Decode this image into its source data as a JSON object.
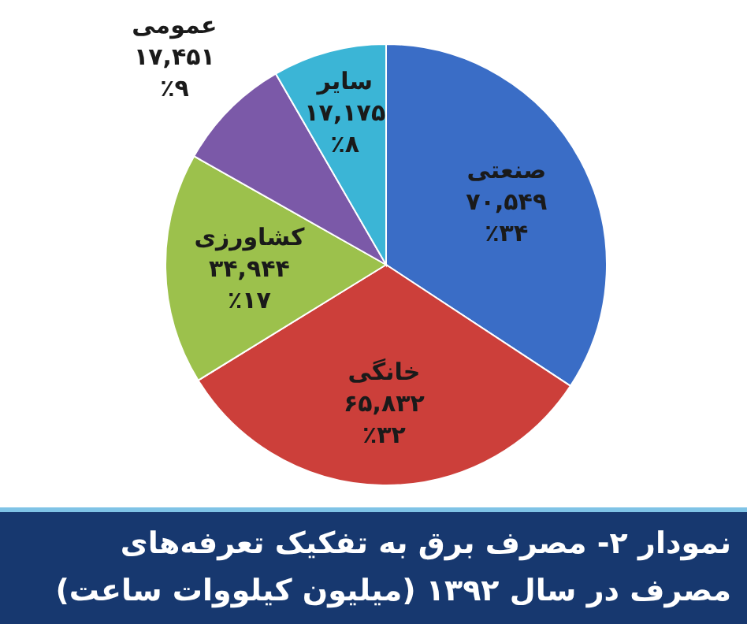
{
  "chart_data": {
    "type": "pie",
    "title": "نمودار ۲- مصرف برق به تفکیک تعرفه‌های مصرف در سال ۱۳۹۲ (میلیون کیلووات ساعت)",
    "categories": [
      "صنعتی",
      "خانگی",
      "کشاورزی",
      "عمومی",
      "سایر"
    ],
    "values": [
      70549,
      65832,
      34944,
      17451,
      17175
    ],
    "value_labels": [
      "۷۰,۵۴۹\n٪۳۴",
      "۶۵,۸۳۲\n٪۳۲",
      "۳۴,۹۴۴\n٪۱۷",
      "۱۷,۴۵۱\n٪۹",
      "۱۷,۱۷۵\n٪۸"
    ],
    "colors": [
      "#3a6dc6",
      "#cc3f3a",
      "#9cc14c",
      "#7b59a8",
      "#3bb5d6"
    ]
  }
}
